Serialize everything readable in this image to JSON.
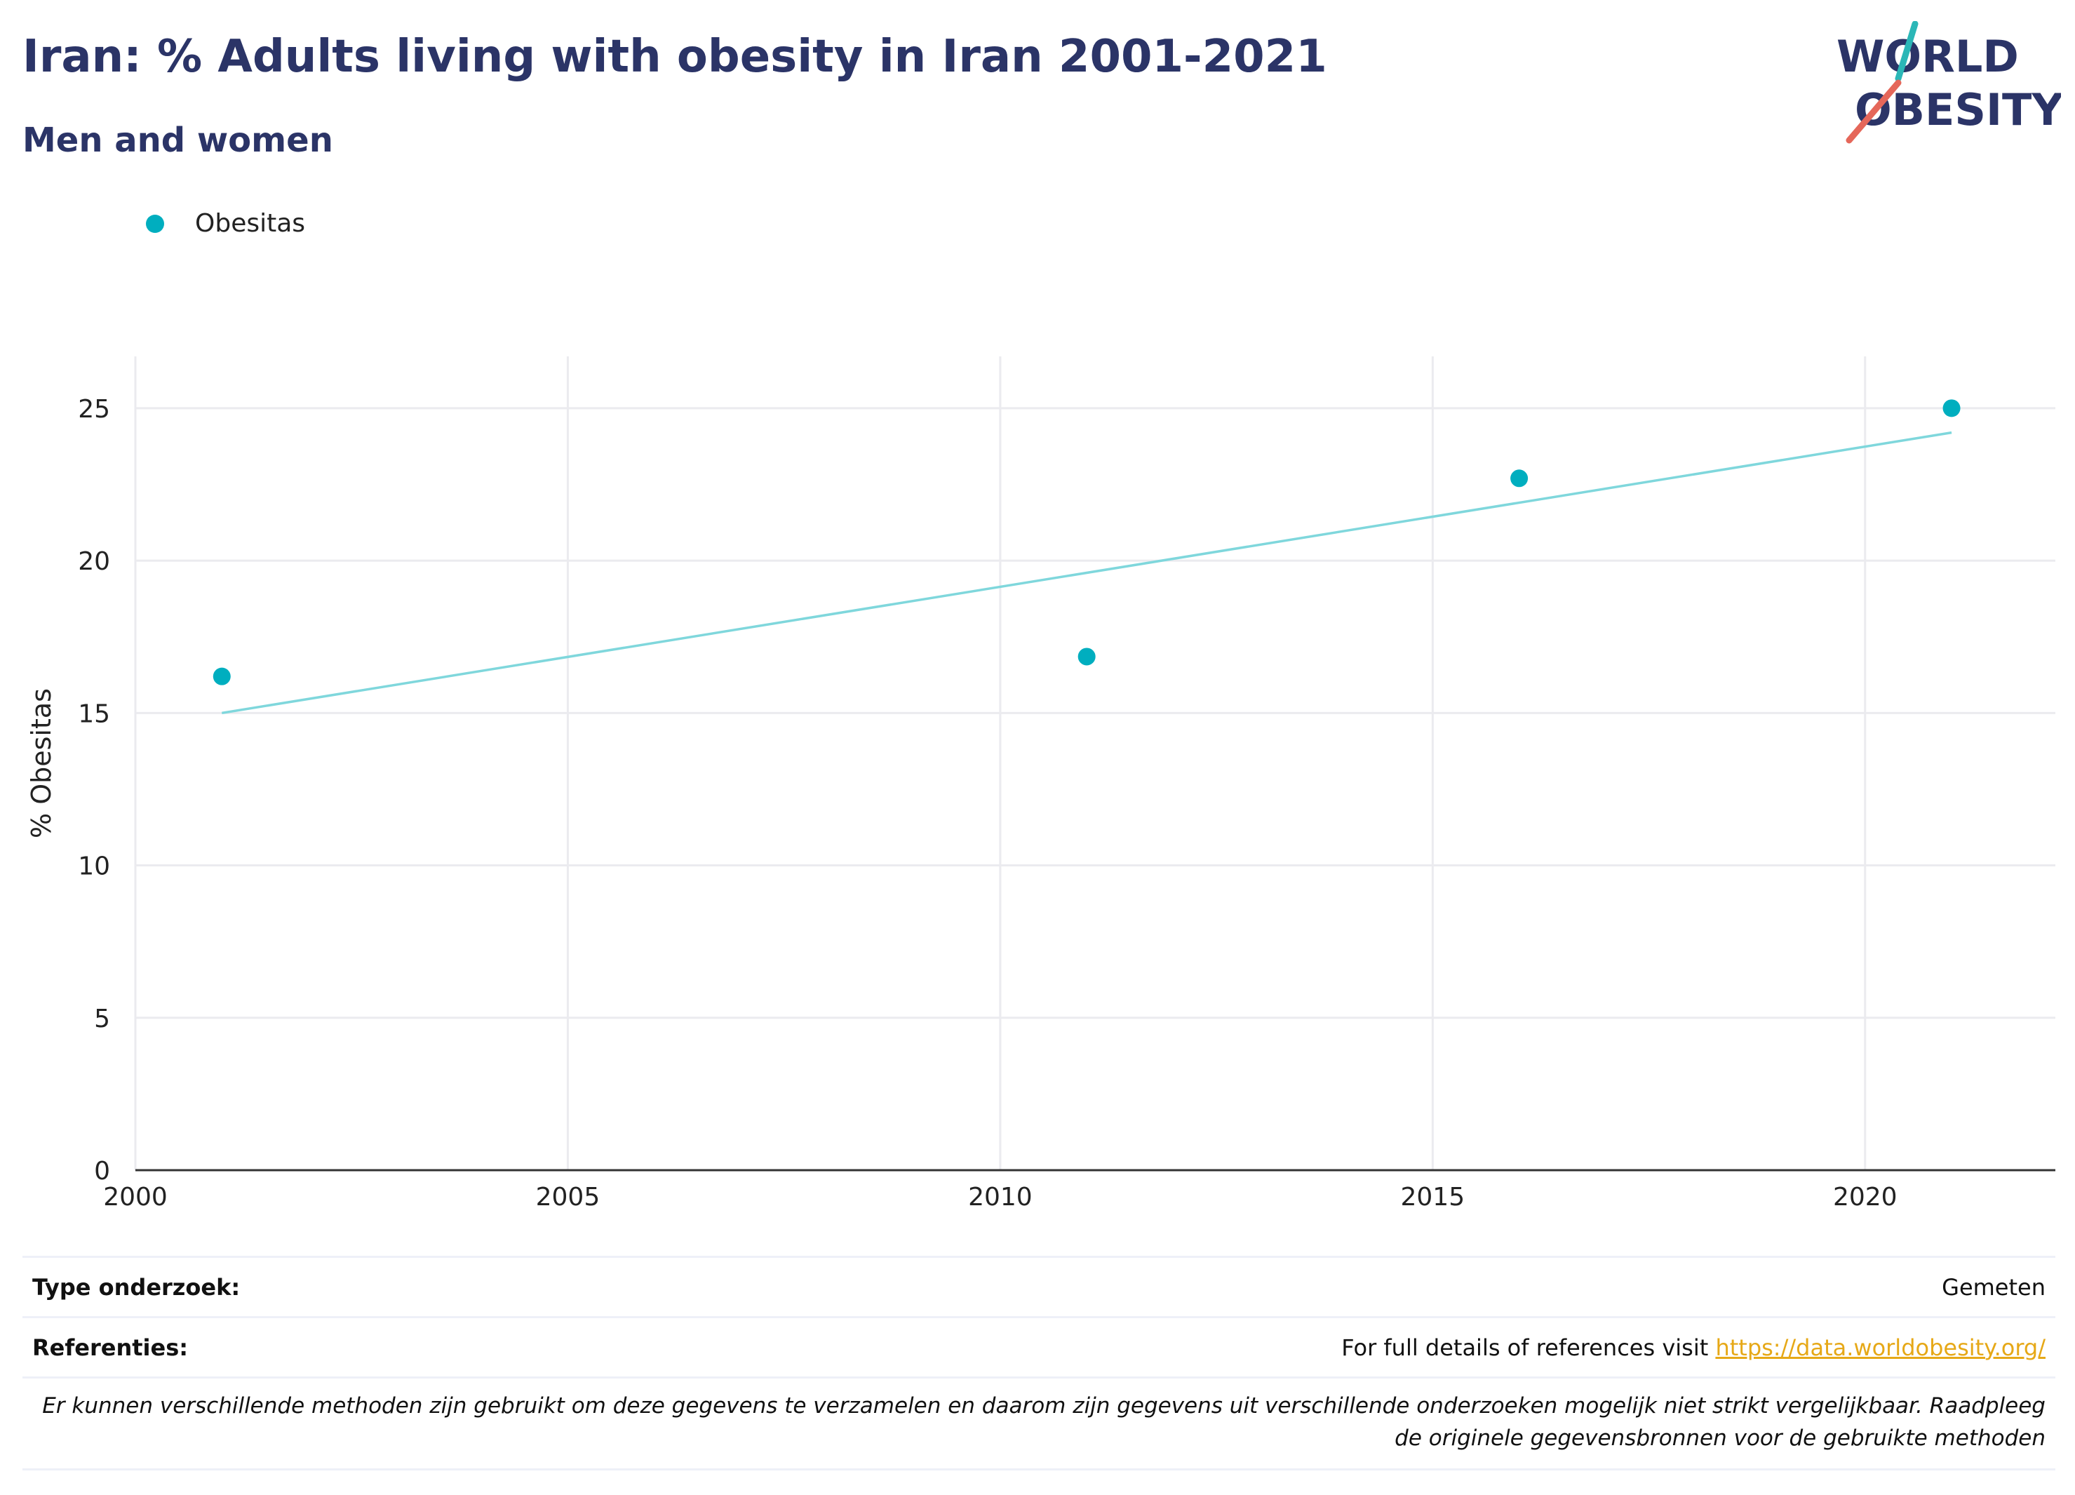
{
  "header": {
    "title": "Iran: % Adults living with obesity in Iran 2001-2021",
    "subtitle": "Men and women"
  },
  "logo": {
    "line1": "WORLD",
    "line2": "OBESITY",
    "colors": {
      "text": "#2b3467",
      "teal": "#2bb7b7",
      "red": "#e5675a"
    }
  },
  "legend": {
    "label": "Obesitas",
    "color": "#00aebf"
  },
  "chart_data": {
    "type": "scatter",
    "title": "Iran: % Adults living with obesity in Iran 2001-2021",
    "subtitle": "Men and women",
    "xlabel": "",
    "ylabel": "% Obesitas",
    "xlim": [
      2000,
      2022.2
    ],
    "ylim": [
      0,
      26.7
    ],
    "x_ticks": [
      2000,
      2005,
      2010,
      2015,
      2020
    ],
    "y_ticks": [
      0,
      5,
      10,
      15,
      20,
      25
    ],
    "grid": true,
    "legend_position": "top-left",
    "series": [
      {
        "name": "Obesitas",
        "color": "#00aebf",
        "points": [
          {
            "x": 2001,
            "y": 16.2
          },
          {
            "x": 2011,
            "y": 16.85
          },
          {
            "x": 2016,
            "y": 22.7
          },
          {
            "x": 2021,
            "y": 25.0
          }
        ]
      }
    ],
    "trendline": {
      "color": "#7fd7dc",
      "points": [
        {
          "x": 2001,
          "y": 15.0
        },
        {
          "x": 2021,
          "y": 24.2
        }
      ]
    }
  },
  "info": {
    "type_label": "Type onderzoek:",
    "type_value": "Gemeten",
    "ref_label": "Referenties:",
    "ref_text": "For full details of references visit ",
    "ref_link": "https://data.worldobesity.org/",
    "disclaimer_line1": "Er kunnen verschillende methoden zijn gebruikt om deze gegevens te verzamelen en daarom zijn gegevens uit verschillende onderzoeken mogelijk niet strikt vergelijkbaar. Raadpleeg",
    "disclaimer_line2": "de originele gegevensbronnen voor de gebruikte methoden"
  }
}
